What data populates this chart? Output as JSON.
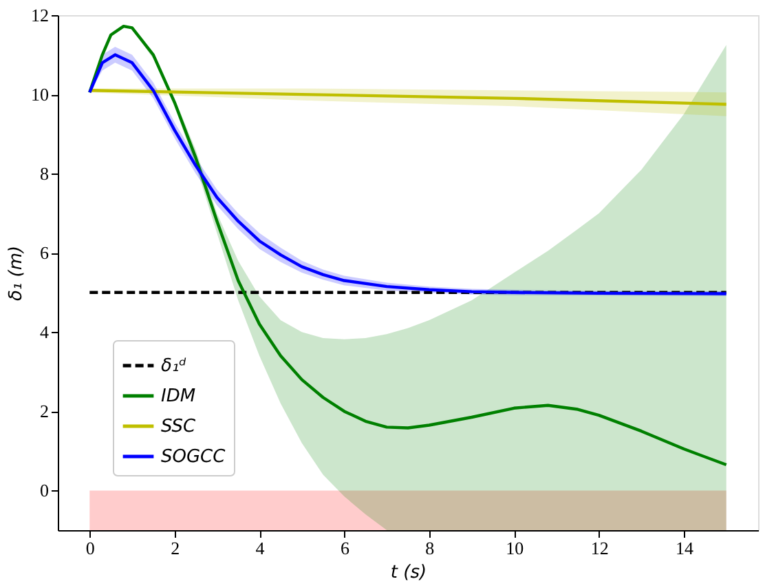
{
  "chart_data": {
    "type": "line",
    "xlabel": "t (s)",
    "ylabel": "δ₁ (m)",
    "xlim": [
      -0.75,
      15.75
    ],
    "ylim": [
      -1,
      12
    ],
    "xticks": [
      0,
      2,
      4,
      6,
      8,
      10,
      12,
      14
    ],
    "yticks": [
      0,
      2,
      4,
      6,
      8,
      10,
      12
    ],
    "grid": false,
    "legend": "bottom left",
    "bands": [
      {
        "axis": "y",
        "from": -1,
        "to": 0,
        "color": "#ffcccc"
      }
    ],
    "series": [
      {
        "name": "δ₁ᵈ",
        "color": "#000000",
        "line_style": "dashed",
        "x": [
          0,
          15
        ],
        "values": [
          5,
          5
        ]
      },
      {
        "name": "IDM",
        "color": "#008000",
        "x": [
          0,
          0.3,
          0.5,
          0.8,
          1.0,
          1.5,
          2,
          2.5,
          3,
          3.5,
          4,
          4.5,
          5,
          5.5,
          6,
          6.5,
          7,
          7.5,
          8,
          9,
          10,
          10.8,
          11.5,
          12,
          13,
          14,
          15
        ],
        "values": [
          10.05,
          11.0,
          11.5,
          11.72,
          11.68,
          11.0,
          9.8,
          8.4,
          6.8,
          5.3,
          4.2,
          3.4,
          2.8,
          2.35,
          2.0,
          1.75,
          1.6,
          1.58,
          1.65,
          1.85,
          2.08,
          2.15,
          2.05,
          1.9,
          1.5,
          1.05,
          0.65
        ],
        "lower": [
          10.05,
          11.0,
          11.5,
          11.7,
          11.65,
          10.9,
          9.7,
          8.2,
          6.5,
          4.8,
          3.4,
          2.2,
          1.2,
          0.4,
          -0.15,
          -0.6,
          -1,
          -1,
          -1,
          -1,
          -1,
          -1,
          -1,
          -1,
          -1,
          -1,
          -1
        ],
        "upper": [
          10.05,
          11.0,
          11.5,
          11.74,
          11.7,
          11.05,
          9.9,
          8.6,
          7.0,
          5.8,
          4.9,
          4.3,
          4.0,
          3.85,
          3.82,
          3.85,
          3.95,
          4.1,
          4.3,
          4.8,
          5.5,
          6.05,
          6.6,
          7.0,
          8.1,
          9.5,
          11.25
        ]
      },
      {
        "name": "SSC",
        "color": "#bfbf00",
        "x": [
          0,
          5,
          10,
          15
        ],
        "values": [
          10.1,
          10.0,
          9.9,
          9.75
        ],
        "lower": [
          10.05,
          9.85,
          9.7,
          9.45
        ],
        "upper": [
          10.15,
          10.15,
          10.1,
          10.05
        ]
      },
      {
        "name": "SOGCC",
        "color": "#0000ff",
        "x": [
          0,
          0.3,
          0.6,
          1,
          1.5,
          2,
          2.5,
          3,
          3.5,
          4,
          4.5,
          5,
          5.5,
          6,
          7,
          8,
          9,
          10,
          12,
          15
        ],
        "values": [
          10.05,
          10.8,
          11.0,
          10.8,
          10.1,
          9.1,
          8.2,
          7.4,
          6.8,
          6.3,
          5.95,
          5.65,
          5.45,
          5.3,
          5.15,
          5.07,
          5.02,
          5.0,
          4.98,
          4.97
        ],
        "lower": [
          10.05,
          10.6,
          10.8,
          10.6,
          9.9,
          8.9,
          8.0,
          7.2,
          6.6,
          6.1,
          5.77,
          5.5,
          5.32,
          5.18,
          5.05,
          4.99,
          4.95,
          4.93,
          4.92,
          4.91
        ],
        "upper": [
          10.05,
          11.0,
          11.2,
          11.0,
          10.3,
          9.3,
          8.4,
          7.6,
          7.0,
          6.5,
          6.13,
          5.8,
          5.58,
          5.42,
          5.25,
          5.15,
          5.09,
          5.07,
          5.04,
          5.03
        ]
      }
    ]
  }
}
